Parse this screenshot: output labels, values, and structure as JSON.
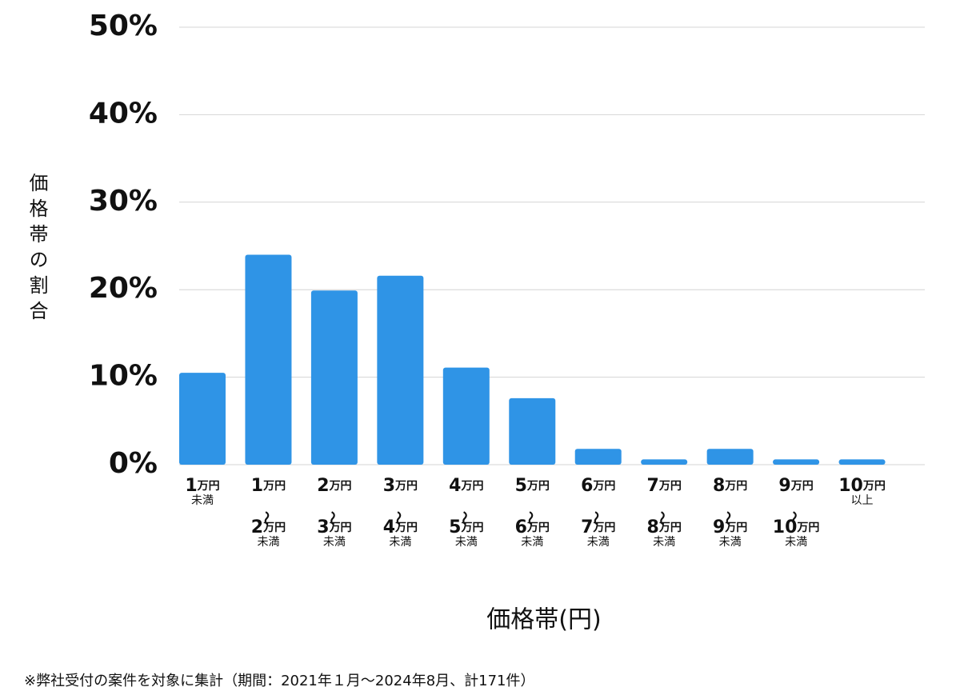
{
  "chart_data": {
    "type": "bar",
    "y_axis_label": "価格帯の割合",
    "x_axis_label": "価格帯(円)",
    "footnote": "※弊社受付の案件を対象に集計（期間：2021年１月～2024年8月、計171件）",
    "categories": [
      "1万円\n未満",
      "1万円\n～\n2万円\n未満",
      "2万円\n～\n3万円\n未満",
      "3万円\n～\n4万円\n未満",
      "4万円\n～\n5万円\n未満",
      "5万円\n～\n6万円\n未満",
      "6万円\n～\n7万円\n未満",
      "7万円\n～\n8万円\n未満",
      "8万円\n～\n9万円\n未満",
      "9万円\n～\n10万円\n未満",
      "10万円\n以上"
    ],
    "values": [
      10.5,
      24.0,
      19.9,
      21.6,
      11.1,
      7.6,
      1.8,
      0.6,
      1.8,
      0.6,
      0.6
    ],
    "color": "#2f94e6",
    "ylim": [
      0,
      50
    ],
    "yticks": [
      {
        "value": 0,
        "label": "0%"
      },
      {
        "value": 10,
        "label": "10%"
      },
      {
        "value": 20,
        "label": "20%"
      },
      {
        "value": 30,
        "label": "30%"
      },
      {
        "value": 40,
        "label": "40%"
      },
      {
        "value": 50,
        "label": "50%"
      }
    ],
    "grid": true
  }
}
